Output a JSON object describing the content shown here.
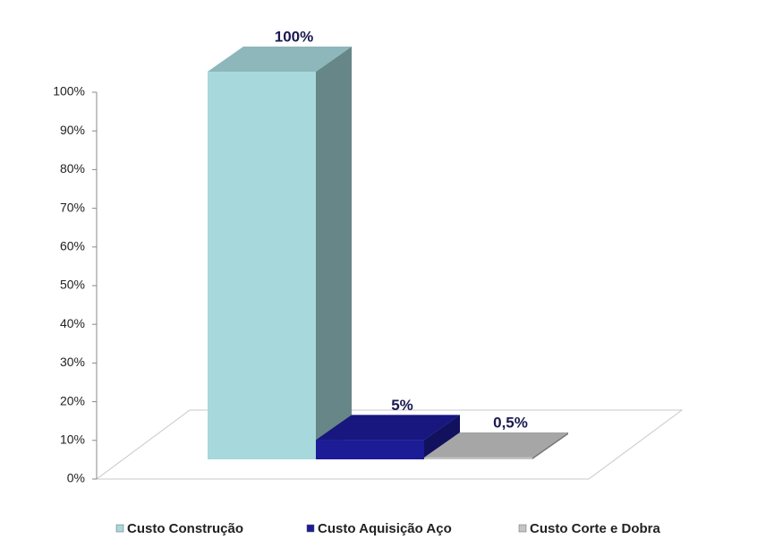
{
  "chart_data": {
    "type": "bar3d",
    "series": [
      {
        "name": "Custo Construção",
        "color": "#a6d8dc",
        "values": [
          100
        ],
        "value_labels": [
          "100%"
        ]
      },
      {
        "name": "Custo Aquisição Aço",
        "color": "#1c1c96",
        "values": [
          5
        ],
        "value_labels": [
          "5%"
        ]
      },
      {
        "name": "Custo Corte e Dobra",
        "color": "#c4c4c4",
        "values": [
          0.5
        ],
        "value_labels": [
          "0,5%"
        ]
      }
    ],
    "ylim": [
      0,
      100
    ],
    "yticks": [
      {
        "value": 0,
        "label": "0%"
      },
      {
        "value": 10,
        "label": "10%"
      },
      {
        "value": 20,
        "label": "20%"
      },
      {
        "value": 30,
        "label": "30%"
      },
      {
        "value": 40,
        "label": "40%"
      },
      {
        "value": 50,
        "label": "50%"
      },
      {
        "value": 60,
        "label": "60%"
      },
      {
        "value": 70,
        "label": "70%"
      },
      {
        "value": 80,
        "label": "80%"
      },
      {
        "value": 90,
        "label": "90%"
      },
      {
        "value": 100,
        "label": "100%"
      }
    ],
    "grid": false
  }
}
